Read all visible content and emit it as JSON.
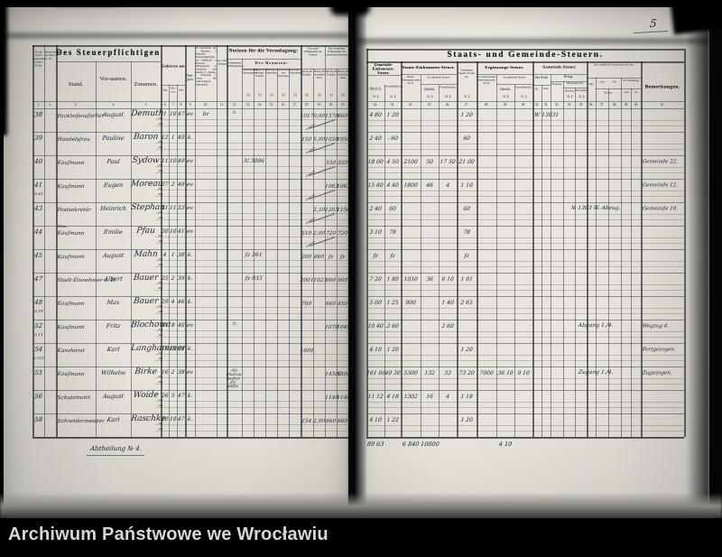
{
  "watermark": "Archiwum Państwowe we Wrocławiu",
  "page_number": "5",
  "colors": {
    "background": "#000000",
    "paper": "#e7e4dd",
    "ink": "#23232b"
  },
  "left_page": {
    "col1_header": "№ der Staats-Einkommen-Steuer-Rolle.",
    "col2_header": "Bezeichnung der Haus-№.",
    "group_person": "Des Steuerpflichtigen",
    "col3": "Stand.",
    "col4": "Vor-namen.",
    "col5": "Zunamen.",
    "group_born": "Geboren am",
    "col6": "Tag.",
    "col7": "Mo-nat.",
    "col8": "Jahr.",
    "col9": "Reli-gion.",
    "col10": "Ob bezeichnet als: 1. Beamter, 2. Deutscher Reichsangehöriger und Ausländer, 3. Deutsche Militärperson, 4. Geistlicher und Beamter, 5. Rentier, 6. Pensionär, 7. Person mit anderweitigem Einkommen.",
    "col11": "Zu- und Abgang.",
    "group_notes": "Notizen für die Veranlagung:",
    "col12": "Allgemeine Bemerkungen.",
    "group_beamten": "Der Beamten:",
    "beamten_col_labels": [
      "Gebäudesteuer-Nutzungswert.",
      "Gewerbliches Anlage-Kapital.",
      "Sonstiges Vermögen.",
      "Einkommen aus Vermögen.",
      "Sonstiges Einkommen."
    ],
    "group_a": "Das reine Einkommen der Wähler:",
    "group_b": "Das veranlagte Einkommen der Gewerbetreibenden:",
    "ab_col_labels": [
      "Betrag im Vorjahre.",
      "Betrag im laufenden Jahre.",
      "Betrag im Vorjahre.",
      "Betrag im laufenden Jahre."
    ],
    "money": "ℳ",
    "col_numbers": [
      "1.",
      "2.",
      "3.",
      "4.",
      "5.",
      "6.",
      "7.",
      "8.",
      "9.",
      "10.",
      "11.",
      "12.",
      "13.",
      "14.",
      "15.",
      "16.",
      "17.",
      "18.",
      "19.",
      "20.",
      "21."
    ],
    "sub_row_labels": [
      "Zug.",
      "Abg."
    ],
    "footer_note": "Abtheilung № 4.",
    "rows": [
      {
        "no": "38",
        "stand": "Packhofsaufseher",
        "vorname": "August",
        "zuname": "Demuth",
        "tag": "1",
        "monat": "10",
        "jahr": "47",
        "rel": "ev",
        "m10": "br",
        "m12": "fz",
        "a18": "1017",
        "a19": "9,00",
        "a20": "1570",
        "a21": "660",
        "tick": true
      },
      {
        "no": "39",
        "stand": "Handelsfrau",
        "vorname": "Pauline",
        "zuname": "Baron",
        "tag": "12",
        "monat": "1",
        "jahr": "49",
        "rel": "k.",
        "a18": "150",
        "a19": "5,00",
        "a20": "1050",
        "a21": "1050",
        "tick": true
      },
      {
        "no": "40",
        "stand": "Kaufmann",
        "vorname": "Paul",
        "zuname": "Sydow",
        "tag": "11",
        "monat": "10",
        "jahr": "49",
        "rel": "ev",
        "m13": "ℳ 3096",
        "a20": "550",
        "a21": "550",
        "tick": true
      },
      {
        "no": "41",
        "sub": "A 43",
        "stand": "Kaufmann",
        "vorname": "Eugen",
        "zuname": "Moreau",
        "tag": "27",
        "monat": "2",
        "jahr": "49",
        "rel": "ev",
        "a20": "1063",
        "a21": "1063",
        "tick": true
      },
      {
        "no": "43",
        "stand": "Postsekretär",
        "vorname": "Heinrich",
        "zuname": "Stephan",
        "tag": "11",
        "monat": "11",
        "jahr": "53",
        "rel": "ev",
        "a19": "2,10",
        "a20": "1203",
        "a21": "1150",
        "tick": true
      },
      {
        "no": "44",
        "pre": "Wwe.",
        "stand": "Kaufmann",
        "vorname": "Emilie",
        "zuname": "Pfau",
        "tag": "20",
        "monat": "10",
        "jahr": "41",
        "rel": "ev",
        "a18": "510",
        "a19": "2,00",
        "a20": "720",
        "a21": "720",
        "tick": true
      },
      {
        "no": "45",
        "stand": "Kaufmann",
        "vorname": "August",
        "zuname": "Mahn",
        "tag": "4",
        "monat": "1",
        "jahr": "38",
        "rel": "k.",
        "m13": "fz 261",
        "a18": "200",
        "a19": "660",
        "a20": "fz",
        "a21": "fz"
      },
      {
        "no": "47",
        "stand": "Stadt-Einnehmer a. D.",
        "vorname": "Albert",
        "zuname": "Bauer",
        "tag": "25",
        "monat": "2",
        "jahr": "39",
        "rel": "k.",
        "m13": "fz 933",
        "a18": "2001",
        "a19": "1923",
        "a20": "900",
        "a21": "900"
      },
      {
        "no": "48",
        "sub": "A 19",
        "stand": "Kaufmann",
        "vorname": "Max",
        "zuname": "Bauer",
        "tag": "29",
        "monat": "4",
        "jahr": "46",
        "rel": "k.",
        "a18": "700",
        "a20": "660",
        "a21": "450"
      },
      {
        "no": "52",
        "sub": "A 13",
        "stand": "Kaufmann",
        "vorname": "Fritz",
        "zuname": "Blochowa",
        "tag": "21",
        "monat": "8",
        "jahr": "40",
        "rel": "ev",
        "m12": "fz",
        "a20": "1070",
        "a21": "1040"
      },
      {
        "no": "54",
        "sub": "A 115",
        "stand": "Kanzleirat",
        "vorname": "Karl",
        "zuname": "Langhammer",
        "tag": "11",
        "monat": "11",
        "jahr": "50",
        "rel": "k.",
        "a18": "1600"
      },
      {
        "no": "55",
        "stand": "Kaufmann",
        "vorname": "Wilhelm",
        "zuname": "Birke",
        "tag": "16",
        "monat": "2",
        "jahr": "38",
        "rel": "ev",
        "m12": "die Ehefrau besitzt die Hälfte",
        "a20": "14500",
        "a21": "5300"
      },
      {
        "no": "56",
        "stand": "Schutzmann",
        "vorname": "August",
        "zuname": "Woide",
        "tag": "26",
        "monat": "5",
        "jahr": "47",
        "rel": "k.",
        "a20": "1140",
        "a21": "1140"
      },
      {
        "no": "58",
        "stand": "Schneidermeister",
        "vorname": "Karl",
        "zuname": "Raschke",
        "tag": "10",
        "monat": "10",
        "jahr": "47",
        "rel": "k.",
        "a18": "154",
        "a19": "2,00",
        "a20": "660",
        "a21": "660"
      }
    ]
  },
  "right_page": {
    "title": "Staats- und Gemeinde-Steuern.",
    "group_gemeinde_eink": "Gemeinde-Einkommen-Steuer.",
    "col22": "Jährlich.",
    "col23": "Vierteljährlich.",
    "group_staats_eink": "Staats-Einkommen-Steuer.",
    "col24": "Jahres-Einkommen mehr als ℳ",
    "steuer_label": "Zu zahlende Steuer:",
    "col25": "Jährlich.",
    "col26": "Vierteljährlich.",
    "col27": "Zusammen Spalte 23 und 26.",
    "group_ergaenzung": "Ergänzungs-Steuer.",
    "col28": "Zu veranlagendes Vermögen mehr als ℳ",
    "col29": "Jährlich.",
    "col30": "Vierteljährlich.",
    "group_gemeinde": "Gemeinde-Steuer.",
    "group_rolle": "Der Rolle",
    "col31": "№.",
    "col32": "Seite.",
    "group_betrag": "Betrag.",
    "col33": "Übertrag.",
    "group_hebung": "Erhebungs-Soll.",
    "col34": "Jährlich.",
    "col35": "Vierteljährl.",
    "group_change": "Der veränderte Steuersatz tritt ein:",
    "col36": "Jahr.",
    "col37": "von",
    "col38": "bis",
    "col39_40": "laut Verfügung",
    "monat": "Monat.",
    "vom": "vom",
    "nr": "№",
    "col41": "Bemerkungen.",
    "money": "ℳ ₰",
    "col_numbers": [
      "22.",
      "23.",
      "24.",
      "25.",
      "26.",
      "27.",
      "28.",
      "29.",
      "30.",
      "31.",
      "32.",
      "33.",
      "34.",
      "35.",
      "36.",
      "37.",
      "38.",
      "39.",
      "40.",
      "41."
    ],
    "rows": [
      {
        "c22": "4 80",
        "c23": "1 20",
        "c27": "1 20",
        "c31": "W",
        "c32": "1303",
        "c33": "1"
      },
      {
        "c22": "2 40",
        "c23": "- 60",
        "c27": "60"
      },
      {
        "c22": "18 00",
        "c23": "4 50",
        "c24": "2100",
        "c25": "50",
        "c26": "17 50",
        "c27": "21 00",
        "bem": "Gemeinde 22."
      },
      {
        "c22": "15 60",
        "c23": "4 40",
        "c24": "1800",
        "c25": "46",
        "c26": "4",
        "c27": "1 10",
        "bem": "Gemeinde 12."
      },
      {
        "c22": "2 40",
        "c23": "60",
        "c27": "60",
        "note": "№ 1303 W. Abzug.",
        "bem": "Gemeinde 10."
      },
      {
        "c22": "3 10",
        "c23": "78",
        "c27": "78"
      },
      {
        "c22": "fz",
        "c23": "fz",
        "c27": "fz"
      },
      {
        "c22": "7 20",
        "c23": "1 80",
        "c24": "1050",
        "c25": "36",
        "c26": "6 10",
        "c27": "1 91"
      },
      {
        "c22": "5 00",
        "c23": "1 25",
        "c24": "900",
        "c26": "1 40",
        "c27": "2 65"
      },
      {
        "c22": "10 40",
        "c23": "2 60",
        "c26": "2 60",
        "note": "Abgang 1./4.",
        "bem": "Wegzug 4."
      },
      {
        "c22": "4 10",
        "c23": "1 20",
        "c27": "1 20",
        "bem": "Fortgezogen."
      },
      {
        "c22": "161 00",
        "c23": "40 30",
        "c24": "5300",
        "c25": "132",
        "c26": "33",
        "c27": "73 20",
        "c28": "7000",
        "c29": "36 10",
        "c30": "9 10",
        "note": "Zugang 1./4.",
        "bem": "Zugezogen."
      },
      {
        "c22": "11 12",
        "c23": "4 18",
        "c24": "1302",
        "c25": "16",
        "c26": "4",
        "c27": "1 18"
      },
      {
        "c22": "4 10",
        "c23": "1 22",
        "c27": "1 20"
      }
    ],
    "summary": {
      "c22": "89 63",
      "c24": "6 840",
      "c25": "10800",
      "c29": "4 10"
    }
  }
}
